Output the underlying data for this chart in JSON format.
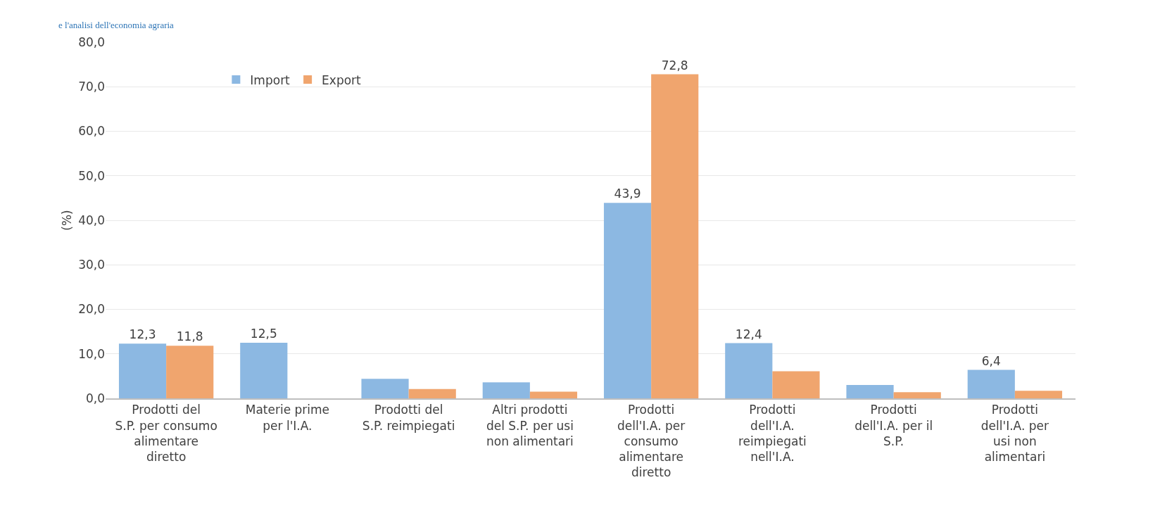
{
  "chart_data": {
    "type": "bar",
    "annotations": [
      "e l'analisi dell'economia agraria"
    ],
    "ylabel": "(%)",
    "categories": [
      "Prodotti del S.P. per consumo alimentare diretto",
      "Materie prime per l'I.A.",
      "Prodotti del S.P. reimpiegati",
      "Altri prodotti del S.P. per usi non alimentari",
      "Prodotti dell'I.A. per consumo alimentare diretto",
      "Prodotti dell'I.A. reimpiegati nell'I.A.",
      "Prodotti dell'I.A. per il S.P.",
      "Prodotti dell'I.A. per usi non alimentari"
    ],
    "series": [
      {
        "name": "Import",
        "color": "#8cb8e2",
        "values": [
          12.3,
          12.5,
          4.4,
          3.6,
          43.9,
          12.4,
          3.0,
          6.4
        ],
        "value_labels": [
          "12,3",
          "12,5",
          null,
          null,
          "43,9",
          "12,4",
          null,
          "6,4"
        ]
      },
      {
        "name": "Export",
        "color": "#f0a56e",
        "values": [
          11.8,
          0,
          2.1,
          1.5,
          72.8,
          6.1,
          1.4,
          1.7
        ],
        "value_labels": [
          "11,8",
          null,
          null,
          null,
          "72,8",
          null,
          null,
          null
        ]
      }
    ],
    "ylim": [
      0,
      80
    ],
    "yticks": [
      {
        "value": 0,
        "label": "0,0"
      },
      {
        "value": 10,
        "label": "10,0"
      },
      {
        "value": 20,
        "label": "20,0"
      },
      {
        "value": 30,
        "label": "30,0"
      },
      {
        "value": 40,
        "label": "40,0"
      },
      {
        "value": 50,
        "label": "50,0"
      },
      {
        "value": 60,
        "label": "60,0"
      },
      {
        "value": 70,
        "label": "70,0"
      },
      {
        "value": 80,
        "label": "80,0"
      }
    ],
    "grid": "y",
    "legend": "top left"
  }
}
